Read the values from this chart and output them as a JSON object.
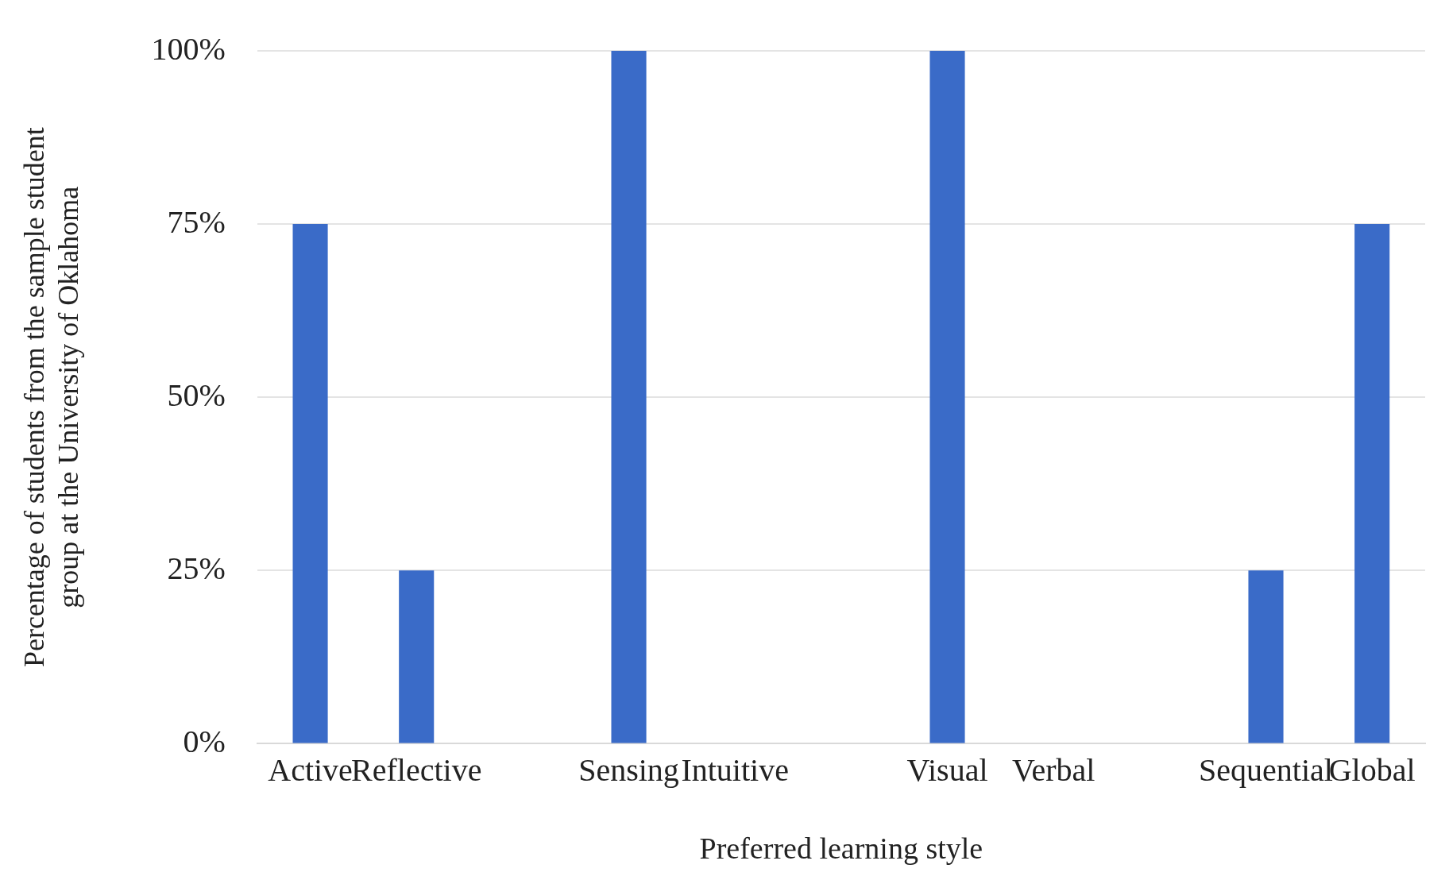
{
  "chart_data": {
    "type": "bar",
    "xlabel": "Preferred learning style",
    "ylabel": "Percentage of students from the sample student group at the University of Oklahoma",
    "categories": [
      "Active",
      "Reflective",
      null,
      "Sensing",
      "Intuitive",
      null,
      "Visual",
      "Verbal",
      null,
      "Sequential",
      "Global"
    ],
    "values": [
      75,
      25,
      null,
      100,
      0,
      null,
      100,
      0,
      null,
      25,
      75
    ],
    "color": "#3a6bc8",
    "ylim": [
      0,
      100
    ],
    "yticks": [
      {
        "value": 0,
        "label": "0%"
      },
      {
        "value": 25,
        "label": "25%"
      },
      {
        "value": 50,
        "label": "50%"
      },
      {
        "value": 75,
        "label": "75%"
      },
      {
        "value": 100,
        "label": "100%"
      }
    ],
    "grid": "y",
    "legend": false
  }
}
